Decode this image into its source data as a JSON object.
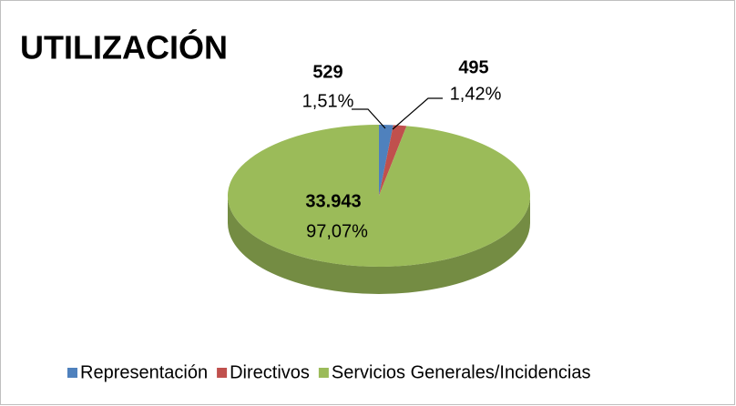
{
  "chart_data": {
    "type": "pie3d",
    "title": "UTILIZACIÓN",
    "categories": [
      "Representación",
      "Directivos",
      "Servicios Generales/Incidencias"
    ],
    "values": [
      529,
      495,
      33943
    ],
    "value_labels": [
      "529",
      "495",
      "33.943"
    ],
    "percents": [
      1.51,
      1.42,
      97.07
    ],
    "percent_labels": [
      "1,51%",
      "1,42%",
      "97,07%"
    ],
    "colors": [
      "#4f81bd",
      "#c0504d",
      "#9bbb59"
    ],
    "legend": "bottom"
  }
}
